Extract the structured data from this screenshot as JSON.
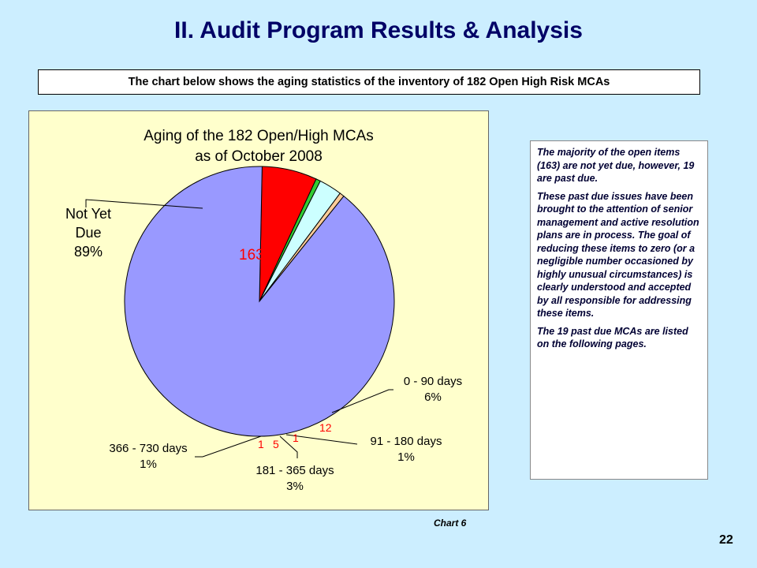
{
  "title": "II. Audit Program Results & Analysis",
  "subtitle": "The chart below shows the aging statistics of the inventory of 182 Open High Risk MCAs",
  "chart_data": {
    "type": "pie",
    "title_line1": "Aging of the 182 Open/High MCAs",
    "title_line2": "as of October 2008",
    "slices": [
      {
        "name": "Not Yet Due",
        "value": 163,
        "value_label": "163",
        "percent": "89%",
        "color": "#9999ff"
      },
      {
        "name": "0 - 90 days",
        "value": 12,
        "value_label": "12",
        "percent": "6%",
        "color": "#ff0000"
      },
      {
        "name": "91 - 180 days",
        "value": 1,
        "value_label": "1",
        "percent": "1%",
        "color": "#33cc33"
      },
      {
        "name": "181 - 365 days",
        "value": 5,
        "value_label": "5",
        "percent": "3%",
        "color": "#ccffff"
      },
      {
        "name": "366 - 730 days",
        "value": 1,
        "value_label": "1",
        "percent": "1%",
        "color": "#ffcc99"
      }
    ],
    "legend": "none"
  },
  "labels": {
    "not_yet_due_1": "Not Yet",
    "not_yet_due_2": "Due",
    "not_yet_due_pct": "89%",
    "d0_90": "0 - 90 days",
    "d0_90_pct": "6%",
    "d91_180": "91 - 180 days",
    "d91_180_pct": "1%",
    "d181_365": "181 - 365 days",
    "d181_365_pct": "3%",
    "d366_730": "366 - 730 days",
    "d366_730_pct": "1%"
  },
  "notes": {
    "p1": "The majority of the open items (163) are not yet due, however, 19 are past due.",
    "p2": "These past due issues have been brought to the attention of senior management and active resolution plans are in process.  The goal of reducing these items to zero (or a negligible number occasioned by highly unusual circumstances) is clearly understood and accepted by all responsible for addressing these items.",
    "p3": "The 19 past due MCAs are listed on the following pages."
  },
  "caption": "Chart 6",
  "page_number": "22"
}
